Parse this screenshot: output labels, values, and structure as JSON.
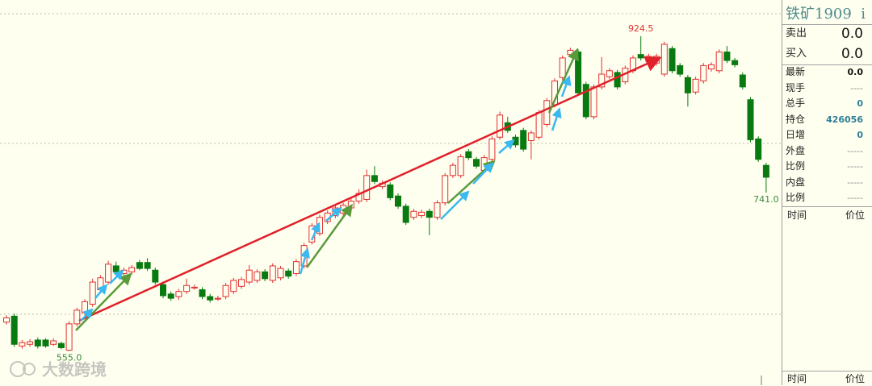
{
  "chart_data": {
    "type": "candlestick",
    "up_color": "#e0302f",
    "down_color": "#087a10",
    "ylim": [
      515,
      967
    ],
    "open": [
      589,
      596,
      561,
      563,
      568,
      568,
      563,
      564,
      556,
      587,
      600,
      610,
      627,
      636,
      655,
      646,
      648,
      659,
      659,
      650,
      633,
      622,
      619,
      625,
      629,
      627,
      619,
      616,
      619,
      625,
      631,
      636,
      638,
      648,
      638,
      641,
      649,
      646,
      655,
      683,
      693,
      707,
      714,
      717,
      723,
      731,
      733,
      761,
      748,
      750,
      737,
      725,
      712,
      714,
      719,
      712,
      729,
      761,
      761,
      789,
      780,
      767,
      780,
      806,
      823,
      806,
      814,
      802,
      806,
      821,
      844,
      876,
      903,
      906,
      868,
      830,
      865,
      877,
      882,
      871,
      884,
      903,
      895,
      893,
      880,
      910,
      890,
      876,
      859,
      872,
      886,
      884,
      906,
      896,
      879,
      850,
      804,
      773
    ],
    "high": [
      597,
      599,
      568,
      569,
      571,
      570,
      570,
      566,
      590,
      606,
      616,
      640,
      644,
      661,
      660,
      653,
      656,
      662,
      664,
      653,
      636,
      625,
      628,
      640,
      633,
      630,
      622,
      620,
      635,
      641,
      642,
      656,
      651,
      651,
      658,
      655,
      652,
      663,
      682,
      705,
      715,
      720,
      726,
      729,
      734,
      745,
      768,
      772,
      755,
      753,
      740,
      728,
      722,
      721,
      722,
      732,
      764,
      776,
      786,
      792,
      783,
      785,
      807,
      836,
      830,
      809,
      817,
      814,
      838,
      852,
      875,
      902,
      911,
      909,
      871,
      868,
      900,
      887,
      885,
      890,
      902,
      924.5,
      904,
      904,
      918,
      913,
      893,
      879,
      877,
      893,
      894,
      909,
      913,
      899,
      882,
      853,
      807,
      776
    ],
    "low": [
      586,
      560,
      558,
      560,
      558,
      559,
      561,
      557,
      555,
      584,
      597,
      607,
      624,
      633,
      645,
      643,
      645,
      650,
      649,
      633,
      617,
      614,
      615,
      622,
      627,
      616,
      612,
      614,
      616,
      622,
      628,
      633,
      635,
      637,
      635,
      638,
      640,
      643,
      652,
      680,
      690,
      704,
      711,
      714,
      720,
      728,
      730,
      751,
      745,
      732,
      722,
      703,
      709,
      711,
      691,
      709,
      726,
      758,
      758,
      779,
      769,
      764,
      777,
      803,
      811,
      794,
      789,
      780,
      803,
      818,
      841,
      873,
      900,
      855,
      827,
      827,
      862,
      874,
      862,
      868,
      881,
      896,
      892,
      890,
      877,
      881,
      877,
      842,
      856,
      869,
      883,
      881,
      893,
      888,
      862,
      800,
      777,
      741
    ],
    "close": [
      594,
      563,
      565,
      566,
      561,
      561,
      567,
      559,
      587,
      603,
      613,
      636,
      641,
      657,
      648,
      650,
      653,
      652,
      652,
      636,
      620,
      617,
      625,
      632,
      630,
      619,
      615,
      617,
      632,
      638,
      639,
      650,
      648,
      640,
      655,
      652,
      643,
      660,
      679,
      702,
      712,
      717,
      723,
      726,
      731,
      740,
      761,
      754,
      752,
      735,
      725,
      706,
      719,
      718,
      712,
      729,
      761,
      773,
      783,
      782,
      772,
      782,
      804,
      832,
      814,
      797,
      792,
      811,
      835,
      849,
      872,
      899,
      908,
      858,
      830,
      865,
      880,
      884,
      865,
      887,
      899,
      899,
      901,
      901,
      915,
      884,
      880,
      858,
      874,
      890,
      891,
      906,
      896,
      891,
      865,
      803,
      780,
      759
    ],
    "annotations": [
      {
        "label": "924.5",
        "value": 924.5,
        "color": "#e0302f"
      },
      {
        "label": "555.0",
        "value": 555,
        "color": "#3b8a3b"
      },
      {
        "label": "741.0",
        "value": 741,
        "color": "#3b8a3b"
      }
    ]
  },
  "panel": {
    "title": "铁矿1909  i",
    "quotes": [
      [
        "卖出",
        "0.0"
      ],
      [
        "买入",
        "0.0"
      ]
    ],
    "stats": [
      [
        "最新",
        "0.0"
      ],
      [
        "现手",
        "----"
      ],
      [
        "总手",
        "0"
      ],
      [
        "持仓",
        "426056"
      ],
      [
        "日增",
        "0"
      ],
      [
        "外盘",
        "-----"
      ],
      [
        "比例",
        "-----"
      ],
      [
        "内盘",
        "-----"
      ],
      [
        "比例",
        "-----"
      ]
    ],
    "ticks_header": [
      "时间",
      "价位"
    ],
    "footer": [
      "时间",
      "价位"
    ]
  },
  "watermark": "大数跨境"
}
